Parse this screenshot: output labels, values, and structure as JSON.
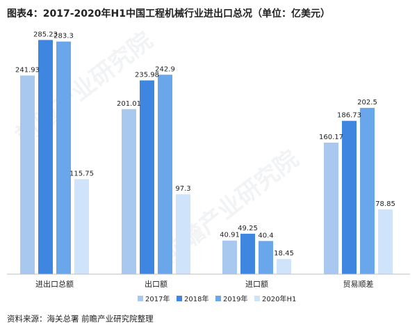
{
  "title": "图表4：2017-2020年H1中国工程机械行业进出口总况（单位：亿美元）",
  "source": "资料来源：海关总署 前瞻产业研究院整理",
  "watermark": "前瞻产业研究院",
  "chart_data": {
    "type": "bar",
    "categories": [
      "进出口总额",
      "出口额",
      "进口额",
      "贸易顺差"
    ],
    "series": [
      {
        "name": "2017年",
        "color": "#a9c8ef",
        "values": [
          241.93,
          201.01,
          40.91,
          160.17
        ],
        "labels": [
          "241.93",
          "201.01",
          "40.91",
          "160.17"
        ]
      },
      {
        "name": "2018年",
        "color": "#3f86e0",
        "values": [
          285.23,
          235.98,
          49.25,
          186.73
        ],
        "labels": [
          "285.23",
          "235.98",
          "49.25",
          "186.73"
        ]
      },
      {
        "name": "2019年",
        "color": "#6aa6ea",
        "values": [
          283.3,
          242.9,
          40.4,
          202.5
        ],
        "labels": [
          "283.3",
          "242.9",
          "40.4",
          "202.5"
        ]
      },
      {
        "name": "2020年H1",
        "color": "#cfe3fb",
        "values": [
          115.75,
          97.3,
          18.45,
          78.85
        ],
        "labels": [
          "115.75",
          "97.3",
          "18.45",
          "78.85"
        ]
      }
    ],
    "ylim": [
      0,
      300
    ],
    "legend_position": "bottom",
    "grid": false
  }
}
